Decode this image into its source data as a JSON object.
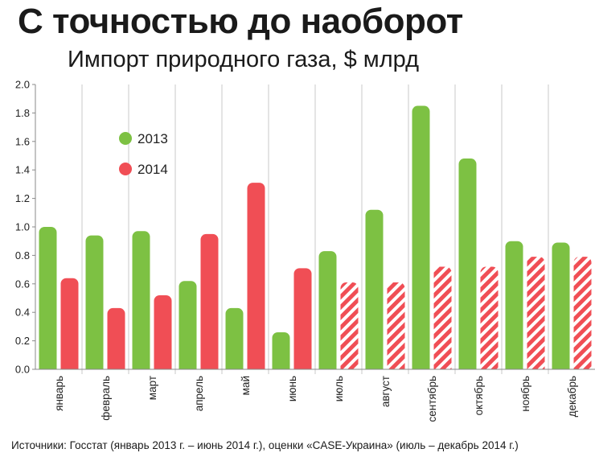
{
  "header": {
    "title": "С точностью до наоборот",
    "subtitle": "Импорт природного газа, $ млрд"
  },
  "footer": {
    "source": "Источники: Госстат (январь 2013 г. – июнь 2014 г.), оценки «CASE-Украина» (июль – декабрь 2014 г.)"
  },
  "chart_data": {
    "type": "bar",
    "title": "Импорт природного газа, $ млрд",
    "categories": [
      "январь",
      "февраль",
      "март",
      "апрель",
      "май",
      "июнь",
      "июль",
      "август",
      "сентябрь",
      "октябрь",
      "ноябрь",
      "декабрь"
    ],
    "series": [
      {
        "name": "2013",
        "color": "#7dc143",
        "values": [
          1.0,
          0.94,
          0.97,
          0.62,
          0.43,
          0.26,
          0.83,
          1.12,
          1.85,
          1.48,
          0.9,
          0.89
        ]
      },
      {
        "name": "2014",
        "color": "#f04e55",
        "values": [
          0.64,
          0.43,
          0.52,
          0.95,
          1.31,
          0.71,
          0.61,
          0.61,
          0.72,
          0.72,
          0.79,
          0.79
        ],
        "estimated_from_index": 6
      }
    ],
    "ylim": [
      0,
      2.0
    ],
    "yticks": [
      "0.0",
      "0.2",
      "0.4",
      "0.6",
      "0.8",
      "1.0",
      "1.2",
      "1.4",
      "1.6",
      "1.8",
      "2.0"
    ],
    "grid": "vertical separators",
    "legend": "top-left"
  }
}
